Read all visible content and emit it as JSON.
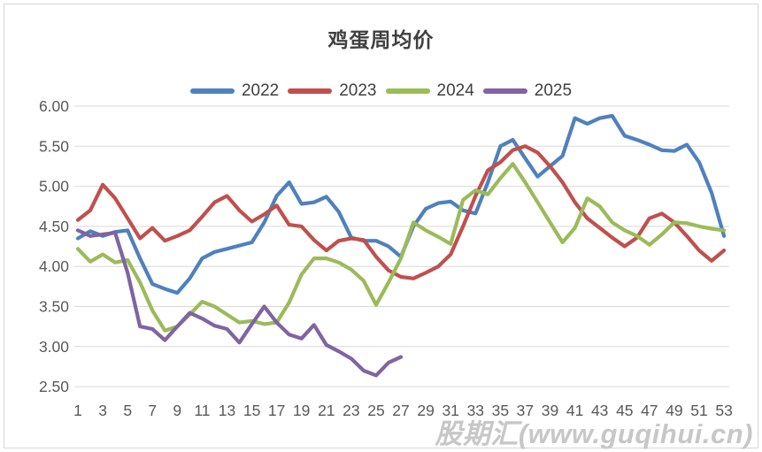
{
  "chart": {
    "title": "鸡蛋周均价",
    "watermark": "股期汇(www.guqihui.cn)"
  },
  "chart_data": {
    "type": "line",
    "title": "鸡蛋周均价",
    "xlabel": "",
    "ylabel": "",
    "x_unit": "week",
    "x_tick_labels": [
      1,
      3,
      5,
      7,
      9,
      11,
      13,
      15,
      17,
      19,
      21,
      23,
      25,
      27,
      29,
      31,
      33,
      35,
      37,
      39,
      41,
      43,
      45,
      47,
      49,
      51,
      53
    ],
    "y_tick_labels": [
      "6.00",
      "5.50",
      "5.00",
      "4.50",
      "4.00",
      "3.50",
      "3.00",
      "2.50"
    ],
    "y_tick_values": [
      6.0,
      5.5,
      5.0,
      4.5,
      4.0,
      3.5,
      3.0,
      2.5
    ],
    "ylim": [
      2.5,
      6.0
    ],
    "xlim": [
      1,
      53
    ],
    "grid": "horizontal",
    "legend_position": "top",
    "axis_label_color": "#595959",
    "grid_color": "#d9d9d9",
    "series": [
      {
        "name": "2022",
        "color": "#4e81bd",
        "x_start": 1,
        "values": [
          4.35,
          4.44,
          4.38,
          4.43,
          4.45,
          4.1,
          3.78,
          3.72,
          3.67,
          3.85,
          4.1,
          4.18,
          4.22,
          4.26,
          4.3,
          4.55,
          4.88,
          5.05,
          4.78,
          4.8,
          4.87,
          4.68,
          4.36,
          4.32,
          4.32,
          4.25,
          4.12,
          4.5,
          4.72,
          4.79,
          4.81,
          4.7,
          4.66,
          5.05,
          5.5,
          5.58,
          5.35,
          5.12,
          5.25,
          5.38,
          5.85,
          5.78,
          5.85,
          5.88,
          5.63,
          5.58,
          5.52,
          5.45,
          5.44,
          5.52,
          5.3,
          4.92,
          4.38
        ]
      },
      {
        "name": "2023",
        "color": "#c0504d",
        "x_start": 1,
        "values": [
          4.58,
          4.7,
          5.02,
          4.85,
          4.6,
          4.35,
          4.48,
          4.32,
          4.38,
          4.45,
          4.62,
          4.8,
          4.88,
          4.7,
          4.56,
          4.65,
          4.76,
          4.52,
          4.5,
          4.33,
          4.2,
          4.32,
          4.35,
          4.33,
          4.12,
          3.95,
          3.87,
          3.85,
          3.92,
          4.0,
          4.15,
          4.5,
          4.88,
          5.2,
          5.3,
          5.45,
          5.5,
          5.42,
          5.25,
          5.05,
          4.8,
          4.6,
          4.48,
          4.36,
          4.25,
          4.36,
          4.6,
          4.66,
          4.55,
          4.38,
          4.2,
          4.07,
          4.2
        ]
      },
      {
        "name": "2024",
        "color": "#9bbb59",
        "x_start": 1,
        "values": [
          4.22,
          4.06,
          4.15,
          4.05,
          4.08,
          3.8,
          3.45,
          3.2,
          3.25,
          3.4,
          3.56,
          3.5,
          3.4,
          3.3,
          3.32,
          3.28,
          3.3,
          3.55,
          3.9,
          4.1,
          4.1,
          4.05,
          3.96,
          3.82,
          3.52,
          3.8,
          4.1,
          4.55,
          4.45,
          4.37,
          4.28,
          4.83,
          4.95,
          4.9,
          5.1,
          5.28,
          5.05,
          4.8,
          4.55,
          4.3,
          4.48,
          4.85,
          4.75,
          4.55,
          4.45,
          4.38,
          4.27,
          4.4,
          4.55,
          4.54,
          4.5,
          4.47,
          4.45
        ]
      },
      {
        "name": "2025",
        "color": "#8064a2",
        "x_start": 1,
        "values": [
          4.45,
          4.38,
          4.4,
          4.42,
          3.92,
          3.25,
          3.22,
          3.08,
          3.25,
          3.42,
          3.35,
          3.26,
          3.22,
          3.05,
          3.28,
          3.5,
          3.3,
          3.15,
          3.1,
          3.27,
          3.02,
          2.94,
          2.85,
          2.7,
          2.64,
          2.8,
          2.87
        ]
      }
    ]
  }
}
